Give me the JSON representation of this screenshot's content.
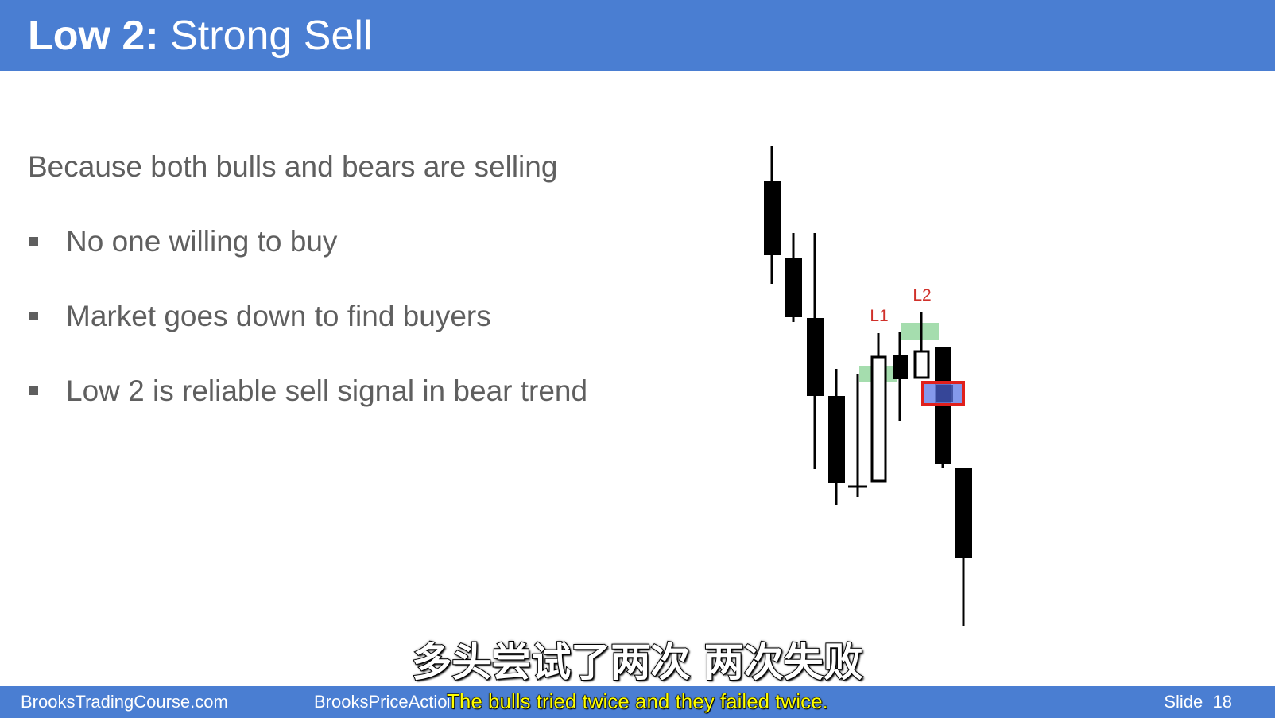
{
  "slide": {
    "title_bold": "Low 2:",
    "title_rest": "Strong Sell",
    "intro": "Because both bulls and bears are selling",
    "bullets": [
      "No one willing to buy",
      "Market goes down to find buyers",
      "Low 2 is reliable sell signal in bear trend"
    ]
  },
  "chart_labels": {
    "l1": "L1",
    "l2": "L2"
  },
  "colors": {
    "header_blue": "#4a7ed2",
    "label_red": "#d0302a",
    "zone_green": "#8fd49a",
    "signal_red": "#e0201c",
    "entry_blue": "#6f86e8"
  },
  "subtitles": {
    "chinese": "多头尝试了两次 两次失败",
    "english": "The bulls tried twice and they failed twice."
  },
  "footer": {
    "left": "BrooksTradingCourse.com",
    "middle": "BrooksPriceAction.com",
    "slide_label": "Slide",
    "slide_number": "18"
  }
}
